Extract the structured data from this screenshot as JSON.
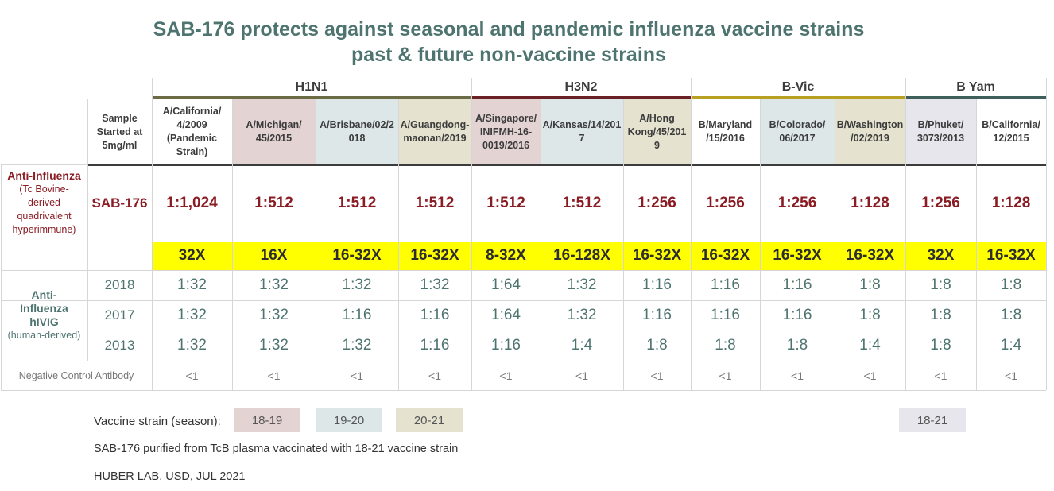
{
  "title_line1": "SAB-176 protects against seasonal and pandemic influenza vaccine strains",
  "title_line2": "past & future non-vaccine strains",
  "chart_data": {
    "type": "table",
    "corner_header": "Sample Started at 5mg/ml",
    "groups": [
      {
        "name": "H1N1",
        "color": "#6b6b45",
        "span": 4
      },
      {
        "name": "H3N2",
        "color": "#6b2025",
        "span": 3
      },
      {
        "name": "B-Vic",
        "color": "#b8a020",
        "span": 3
      },
      {
        "name": "B Yam",
        "color": "#3f5f5b",
        "span": 2
      }
    ],
    "strains": [
      {
        "name": "A/California/ 4/2009 (Pandemic Strain)",
        "season": ""
      },
      {
        "name": "A/Michigan/ 45/2015",
        "season": "18-19"
      },
      {
        "name": "A/Brisbane/02/2 018",
        "season": "19-20"
      },
      {
        "name": "A/Guangdong- maonan/2019",
        "season": "20-21"
      },
      {
        "name": "A/Singapore/ INIFMH-16- 0019/2016",
        "season": "18-19"
      },
      {
        "name": "A/Kansas/14/201 7",
        "season": "19-20"
      },
      {
        "name": "A/Hong Kong/45/201 9",
        "season": "20-21"
      },
      {
        "name": "B/Maryland /15/2016",
        "season": ""
      },
      {
        "name": "B/Colorado/ 06/2017",
        "season": "19-20"
      },
      {
        "name": "B/Washington /02/2019",
        "season": "20-21"
      },
      {
        "name": "B/Phuket/ 3073/2013",
        "season": "18-21"
      },
      {
        "name": "B/California/ 12/2015",
        "season": ""
      }
    ],
    "anti_influenza_label": "Anti-Influenza",
    "anti_influenza_sub": "(Tc Bovine-derived quadrivalent hyperimmune)",
    "sab_label": "SAB-176",
    "sab176": [
      "1:1,024",
      "1:512",
      "1:512",
      "1:512",
      "1:512",
      "1:512",
      "1:256",
      "1:256",
      "1:256",
      "1:128",
      "1:256",
      "1:128"
    ],
    "fold_change": [
      "32X",
      "16X",
      "16-32X",
      "16-32X",
      "8-32X",
      "16-128X",
      "16-32X",
      "16-32X",
      "16-32X",
      "16-32X",
      "32X",
      "16-32X"
    ],
    "hivig_label": "Anti-Influenza hIVIG",
    "hivig_sub": "(human-derived)",
    "hivig": [
      {
        "year": "2018",
        "values": [
          "1:32",
          "1:32",
          "1:32",
          "1:32",
          "1:64",
          "1:32",
          "1:16",
          "1:16",
          "1:16",
          "1:8",
          "1:8",
          "1:8"
        ]
      },
      {
        "year": "2017",
        "values": [
          "1:32",
          "1:32",
          "1:16",
          "1:16",
          "1:64",
          "1:32",
          "1:16",
          "1:16",
          "1:16",
          "1:8",
          "1:8",
          "1:8"
        ]
      },
      {
        "year": "2013",
        "values": [
          "1:32",
          "1:32",
          "1:32",
          "1:16",
          "1:16",
          "1:4",
          "1:8",
          "1:8",
          "1:8",
          "1:4",
          "1:8",
          "1:4"
        ]
      }
    ],
    "negative_label": "Negative Control Antibody",
    "negative": [
      "<1",
      "<1",
      "<1",
      "<1",
      "<1",
      "<1",
      "<1",
      "<1",
      "<1",
      "<1",
      "<1",
      "<1"
    ]
  },
  "legend": {
    "label": "Vaccine strain (season):",
    "seasons": [
      {
        "name": "18-19",
        "color": "#e3d3d3"
      },
      {
        "name": "19-20",
        "color": "#dde7e8"
      },
      {
        "name": "20-21",
        "color": "#e5e2cf"
      },
      {
        "name": "18-21",
        "color": "#e6e6ec"
      }
    ]
  },
  "footnote1": "SAB-176 purified from TcB plasma vaccinated with 18-21 vaccine strain",
  "footnote2": "HUBER LAB, USD, JUL 2021"
}
